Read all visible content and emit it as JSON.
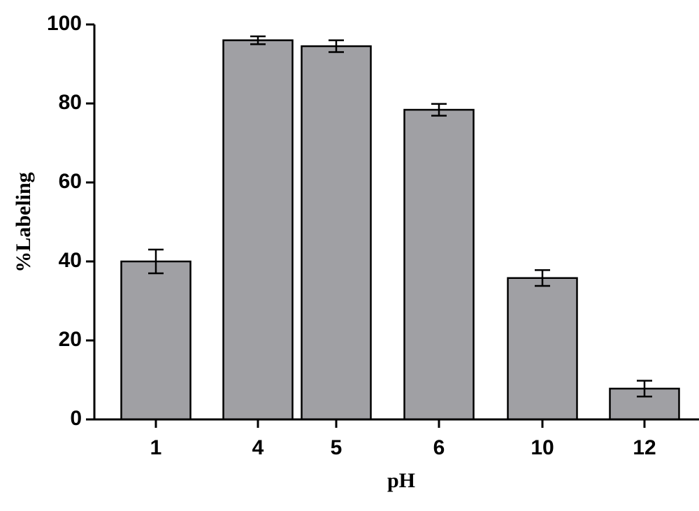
{
  "chart_data": {
    "type": "bar",
    "x_label": "pH",
    "y_label": "%Labeling",
    "categories": [
      "1",
      "4",
      "5",
      "6",
      "10",
      "12"
    ],
    "values": [
      40,
      96,
      94.5,
      78.4,
      35.8,
      7.8
    ],
    "errors": [
      3,
      1,
      1.5,
      1.5,
      2,
      2
    ],
    "color": "#a0a0a4",
    "ylim": [
      0,
      100
    ],
    "yticks": [
      0,
      20,
      40,
      60,
      80,
      100
    ],
    "grid": false
  }
}
